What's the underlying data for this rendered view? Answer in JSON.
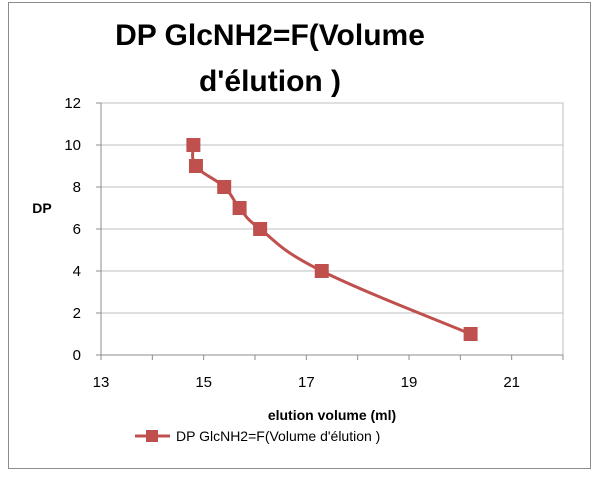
{
  "chart_data": {
    "type": "scatter",
    "title_lines": [
      "DP GlcNH2=F(Volume",
      "d'élution )"
    ],
    "xlabel": "elution volume (ml)",
    "ylabel": "DP",
    "xlim": [
      13,
      22
    ],
    "ylim": [
      0,
      12
    ],
    "x_ticks": [
      13,
      15,
      17,
      19,
      21
    ],
    "y_ticks": [
      0,
      2,
      4,
      6,
      8,
      10,
      12
    ],
    "grid": {
      "horizontal": true,
      "vertical": false
    },
    "legend_position": "bottom",
    "series": [
      {
        "name": "DP GlcNH2=F(Volume d'élution )",
        "color": "#c0504d",
        "marker": "square",
        "line": "smooth",
        "points": [
          {
            "x": 14.8,
            "y": 10
          },
          {
            "x": 14.85,
            "y": 9
          },
          {
            "x": 15.4,
            "y": 8
          },
          {
            "x": 15.7,
            "y": 7
          },
          {
            "x": 16.1,
            "y": 6
          },
          {
            "x": 17.3,
            "y": 4
          },
          {
            "x": 20.2,
            "y": 1
          }
        ]
      }
    ]
  }
}
